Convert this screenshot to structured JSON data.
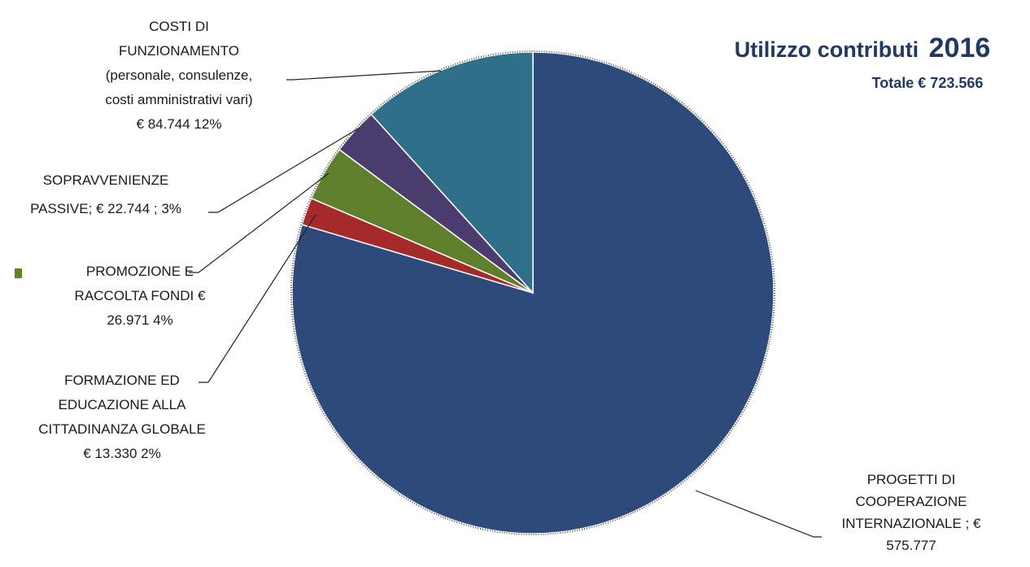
{
  "chart_data": {
    "type": "pie",
    "title": "Utilizzo contributi",
    "title_year": "2016",
    "subtitle": "Totale € 723.566",
    "slices": [
      {
        "name": "PROGETTI DI COOPERAZIONE INTERNAZIONALE",
        "value": 575777,
        "color": "#2e4a7b",
        "label_lines": [
          "PROGETTI DI",
          "COOPERAZIONE",
          "INTERNAZIONALE  ; €",
          "575.777"
        ]
      },
      {
        "name": "FORMAZIONE ED EDUCAZIONE ALLA CITTADINANZA GLOBALE",
        "value": 13330,
        "color": "#a52a2a",
        "label_lines": [
          "FORMAZIONE ED",
          "EDUCAZIONE ALLA",
          "CITTADINANZA  GLOBALE",
          "€ 13.330  2%"
        ]
      },
      {
        "name": "PROMOZIONE E RACCOLTA FONDI",
        "value": 26971,
        "color": "#5f7f2d",
        "label_lines": [
          "PROMOZIONE E",
          "RACCOLTA  FONDI  €",
          "26.971  4%"
        ]
      },
      {
        "name": "SOPRAVVENIENZE PASSIVE",
        "value": 22744,
        "color": "#4b3c6e",
        "label_lines": [
          "SOPRAVVENIENZE",
          "PASSIVE;  € 22.744 ; 3%"
        ]
      },
      {
        "name": "COSTI DI FUNZIONAMENTO",
        "value": 84744,
        "color": "#2f6f89",
        "label_lines": [
          "COSTI DI",
          "FUNZIONAMENTO",
          "(personale, consulenze,",
          "costi amministrativi vari)",
          "€ 84.744  12%"
        ]
      }
    ],
    "legend_marker": {
      "series": "PROMOZIONE E RACCOLTA FONDI",
      "color": "#5f7f2d"
    }
  }
}
